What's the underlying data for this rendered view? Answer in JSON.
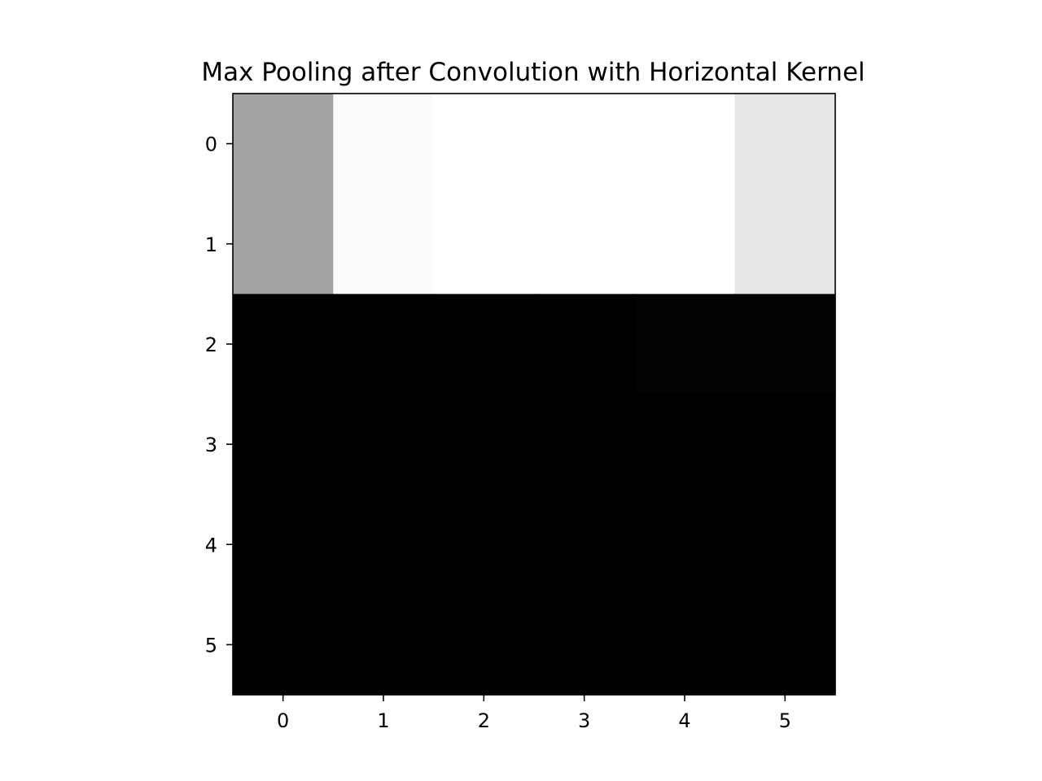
{
  "chart_data": {
    "type": "heatmap",
    "title": "Max Pooling after Convolution with Horizontal Kernel",
    "xlabel": "",
    "ylabel": "",
    "colormap": "gray",
    "x_ticks": [
      "0",
      "1",
      "2",
      "3",
      "4",
      "5"
    ],
    "y_ticks": [
      "0",
      "1",
      "2",
      "3",
      "4",
      "5"
    ],
    "grid": false,
    "values": [
      [
        0.64,
        0.98,
        1.0,
        1.0,
        1.0,
        0.9
      ],
      [
        0.64,
        0.98,
        1.0,
        1.0,
        1.0,
        0.9
      ],
      [
        0.0,
        0.0,
        0.0,
        0.0,
        0.01,
        0.01
      ],
      [
        0.0,
        0.0,
        0.0,
        0.0,
        0.0,
        0.0
      ],
      [
        0.0,
        0.0,
        0.0,
        0.0,
        0.0,
        0.0
      ],
      [
        0.0,
        0.0,
        0.0,
        0.0,
        0.0,
        0.0
      ]
    ]
  }
}
